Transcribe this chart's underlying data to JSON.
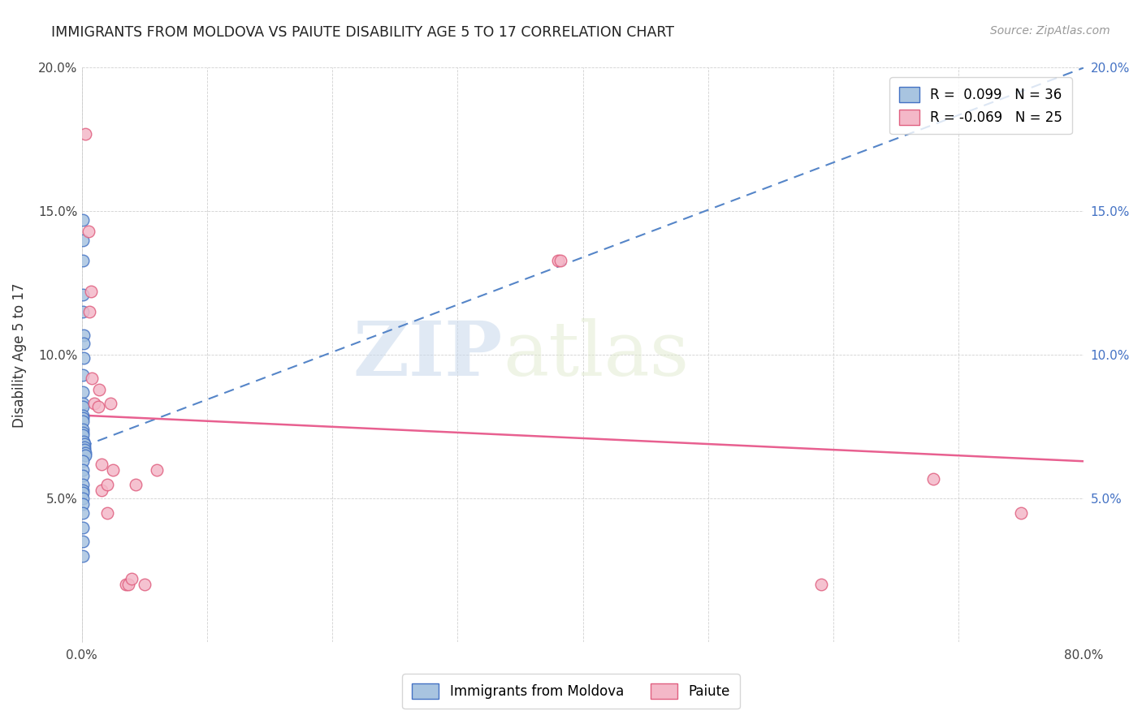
{
  "title": "IMMIGRANTS FROM MOLDOVA VS PAIUTE DISABILITY AGE 5 TO 17 CORRELATION CHART",
  "source": "Source: ZipAtlas.com",
  "ylabel": "Disability Age 5 to 17",
  "xlim": [
    0,
    0.8
  ],
  "ylim": [
    0,
    0.2
  ],
  "xticks": [
    0.0,
    0.1,
    0.2,
    0.3,
    0.4,
    0.5,
    0.6,
    0.7,
    0.8
  ],
  "yticks": [
    0.0,
    0.05,
    0.1,
    0.15,
    0.2
  ],
  "moldova_R": 0.099,
  "moldova_N": 36,
  "paiute_R": -0.069,
  "paiute_N": 25,
  "moldova_color": "#a8c4e0",
  "moldova_edge_color": "#4472c4",
  "paiute_color": "#f4b8c8",
  "paiute_edge_color": "#e06080",
  "moldova_line_color": "#5585c8",
  "paiute_line_color": "#e86090",
  "watermark_zip": "ZIP",
  "watermark_atlas": "atlas",
  "moldova_trend_x": [
    0.0,
    0.8
  ],
  "moldova_trend_y": [
    0.068,
    0.2
  ],
  "paiute_trend_x": [
    0.0,
    0.8
  ],
  "paiute_trend_y": [
    0.079,
    0.063
  ],
  "moldova_x": [
    0.0005,
    0.0008,
    0.0005,
    0.001,
    0.001,
    0.0012,
    0.0012,
    0.0015,
    0.001,
    0.001,
    0.001,
    0.001,
    0.001,
    0.0008,
    0.0008,
    0.001,
    0.001,
    0.001,
    0.0015,
    0.002,
    0.002,
    0.002,
    0.0025,
    0.003,
    0.001,
    0.001,
    0.001,
    0.001,
    0.001,
    0.001,
    0.001,
    0.001,
    0.001,
    0.001,
    0.001,
    0.001
  ],
  "moldova_y": [
    0.147,
    0.14,
    0.133,
    0.121,
    0.115,
    0.107,
    0.104,
    0.099,
    0.093,
    0.087,
    0.083,
    0.082,
    0.079,
    0.078,
    0.077,
    0.074,
    0.073,
    0.072,
    0.07,
    0.069,
    0.068,
    0.067,
    0.066,
    0.065,
    0.063,
    0.06,
    0.058,
    0.055,
    0.053,
    0.052,
    0.05,
    0.048,
    0.045,
    0.04,
    0.035,
    0.03
  ],
  "paiute_x": [
    0.003,
    0.005,
    0.006,
    0.007,
    0.008,
    0.01,
    0.013,
    0.014,
    0.016,
    0.016,
    0.02,
    0.02,
    0.023,
    0.025,
    0.035,
    0.037,
    0.04,
    0.043,
    0.05,
    0.06,
    0.38,
    0.382,
    0.59,
    0.68,
    0.75
  ],
  "paiute_y": [
    0.177,
    0.143,
    0.115,
    0.122,
    0.092,
    0.083,
    0.082,
    0.088,
    0.062,
    0.053,
    0.055,
    0.045,
    0.083,
    0.06,
    0.02,
    0.02,
    0.022,
    0.055,
    0.02,
    0.06,
    0.133,
    0.133,
    0.02,
    0.057,
    0.045
  ]
}
